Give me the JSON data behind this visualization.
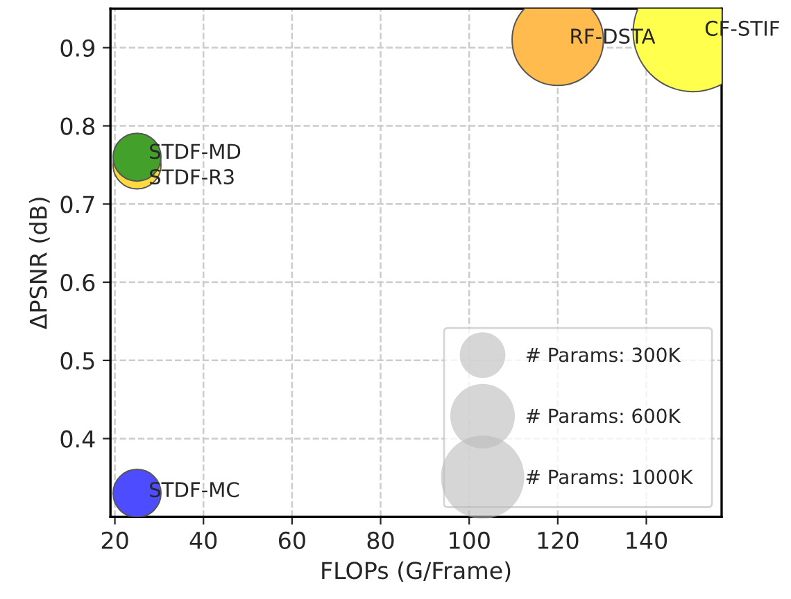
{
  "chart_data": {
    "type": "bubble",
    "xlabel": "FLOPs (G/Frame)",
    "ylabel": "ΔPSNR (dB)",
    "xlim": [
      19,
      157
    ],
    "xticks": [
      20,
      40,
      60,
      80,
      100,
      120,
      140
    ],
    "ylim": [
      0.3,
      0.95
    ],
    "yticks": [
      0.4,
      0.5,
      0.6,
      0.7,
      0.8,
      0.9
    ],
    "grid": true,
    "size_legend": [
      {
        "value": 300,
        "label": "# Params: 300K"
      },
      {
        "value": 600,
        "label": "# Params: 600K"
      },
      {
        "value": 1000,
        "label": "# Params: 1000K"
      }
    ],
    "series": [
      {
        "name": "STDF-MC",
        "color": "#4d4dff",
        "x": [
          25
        ],
        "values": [
          0.33
        ],
        "sizes": [
          330
        ]
      },
      {
        "name": "STDF-R3",
        "color": "#ffd940",
        "x": [
          25
        ],
        "values": [
          0.75
        ],
        "sizes": [
          330
        ]
      },
      {
        "name": "STDF-MD",
        "color": "#43a02a",
        "x": [
          25
        ],
        "values": [
          0.76
        ],
        "sizes": [
          330
        ]
      },
      {
        "name": "RF-DSTA",
        "color": "#ffbb4d",
        "x": [
          120
        ],
        "values": [
          0.91
        ],
        "sizes": [
          1200
        ]
      },
      {
        "name": "CF-STIF",
        "color": "#ffff4d",
        "x": [
          150.5
        ],
        "values": [
          0.92
        ],
        "sizes": [
          2050
        ]
      }
    ]
  }
}
